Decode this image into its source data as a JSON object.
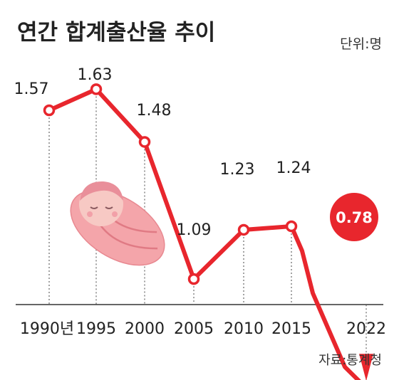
{
  "title": "연간 합계출산율 추이",
  "unit": "단위:명",
  "source": "자료:통계청",
  "colors": {
    "line": "#e8262d",
    "marker_fill": "#ffffff",
    "callout": "#e8262d",
    "baby_blanket": "#f4a5aa",
    "baby_face": "#f7c9c4"
  },
  "icon": "baby-swaddled-illustration",
  "chart_data": {
    "type": "line",
    "x": [
      "1990년",
      "1995",
      "2000",
      "2005",
      "2010",
      "2015",
      "2022"
    ],
    "series": [
      {
        "values": [
          1.57,
          1.63,
          1.48,
          1.09,
          1.23,
          1.24,
          0.78
        ]
      }
    ],
    "intermediate_points": [
      {
        "year": 2016,
        "value": 1.17
      },
      {
        "year": 2017,
        "value": 1.05
      },
      {
        "year": 2018,
        "value": 0.98
      },
      {
        "year": 2020,
        "value": 0.84
      }
    ],
    "data_labels": [
      "1.57",
      "1.63",
      "1.48",
      "1.09",
      "1.23",
      "1.24",
      "0.78"
    ],
    "highlight": {
      "index": 6,
      "label": "0.78"
    },
    "ylim": [
      0.7,
      1.7
    ],
    "grid": "vertical dotted drop lines",
    "legend": "none"
  }
}
